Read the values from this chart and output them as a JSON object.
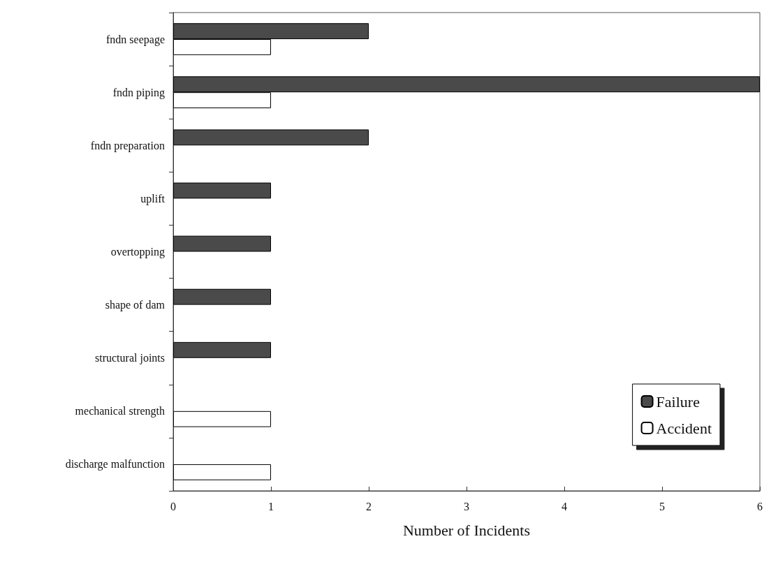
{
  "chart_data": {
    "type": "bar",
    "orientation": "horizontal",
    "xlabel": "Number of Incidents",
    "categories": [
      "fndn seepage",
      "fndn piping",
      "fndn preparation",
      "uplift",
      "overtopping",
      "shape of dam",
      "structural joints",
      "mechanical strength",
      "discharge malfunction"
    ],
    "series": [
      {
        "name": "Failure",
        "color": "#4a4a4a",
        "values": [
          2,
          6,
          2,
          1,
          1,
          1,
          1,
          null,
          null
        ]
      },
      {
        "name": "Accident",
        "color": "#ffffff",
        "values": [
          1,
          1,
          null,
          null,
          null,
          null,
          null,
          1,
          1
        ]
      }
    ],
    "xlim": [
      0,
      6
    ],
    "xticks": [
      0,
      1,
      2,
      3,
      4,
      5,
      6
    ],
    "grid": false,
    "legend": "bottom right"
  }
}
